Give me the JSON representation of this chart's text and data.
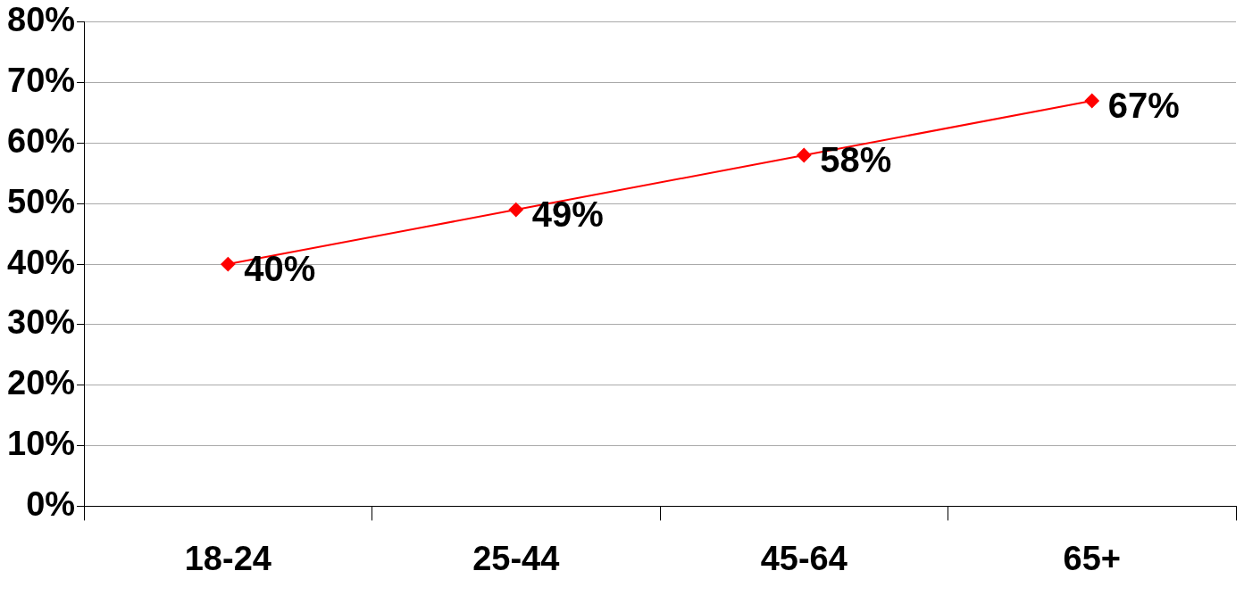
{
  "chart_data": {
    "type": "line",
    "categories": [
      "18-24",
      "25-44",
      "45-64",
      "65+"
    ],
    "series": [
      {
        "color": "#ff0000",
        "values": [
          40,
          49,
          58,
          67
        ],
        "value_labels": [
          "40%",
          "49%",
          "58%",
          "67%"
        ]
      }
    ],
    "ylim": [
      0,
      80
    ],
    "yticks": [
      {
        "value": 0,
        "label": "0%"
      },
      {
        "value": 10,
        "label": "10%"
      },
      {
        "value": 20,
        "label": "20%"
      },
      {
        "value": 30,
        "label": "30%"
      },
      {
        "value": 40,
        "label": "40%"
      },
      {
        "value": 50,
        "label": "50%"
      },
      {
        "value": 60,
        "label": "60%"
      },
      {
        "value": 70,
        "label": "70%"
      },
      {
        "value": 80,
        "label": "80%"
      }
    ],
    "grid": "y",
    "legend": false,
    "marker": "diamond",
    "line_style": "solid"
  }
}
